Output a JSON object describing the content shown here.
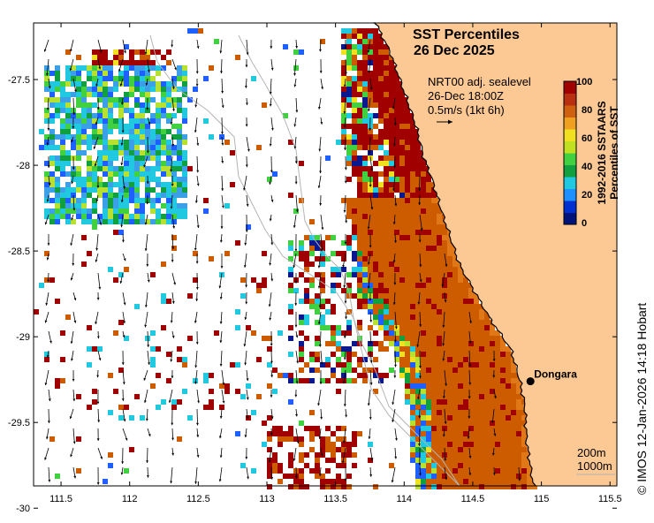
{
  "title": {
    "line1": "SST Percentiles",
    "line2": "26 Dec 2025"
  },
  "annotation": {
    "line1": "NRT00 adj. sealevel",
    "line2": "26-Dec 18:00Z",
    "line3": "0.5m/s (1kt 6h)"
  },
  "colorbar": {
    "ticks": [
      "0",
      "20",
      "40",
      "60",
      "80",
      "100"
    ],
    "title_line1": "1992-2016 SSTAARS",
    "title_line2": "Percentiles of SST",
    "colors": [
      "#00137a",
      "#0030d0",
      "#1e90ff",
      "#20c8e0",
      "#10a040",
      "#40d040",
      "#c0e020",
      "#f0e020",
      "#f0a020",
      "#d06010",
      "#b83010",
      "#a00000"
    ]
  },
  "axes": {
    "x_ticks": [
      "111.5",
      "112",
      "112.5",
      "113",
      "113.5",
      "114",
      "114.5",
      "115",
      "115.5"
    ],
    "y_ticks": [
      "-27.5",
      "-28",
      "-28.5",
      "-29",
      "-29.5",
      "-30"
    ],
    "x_range": [
      111.3,
      115.55
    ],
    "y_range": [
      -29.87,
      -27.17
    ]
  },
  "town": {
    "name": "Dongara",
    "lon": 114.92,
    "lat": -29.26
  },
  "legend": {
    "isobath1": "200m",
    "isobath2": "1000m"
  },
  "credit": "© IMOS 12-Jan-2026 14:18 Hobart",
  "colors": {
    "land": "#fcc894",
    "coast": "#000000",
    "contour": "#b4b4b4"
  }
}
